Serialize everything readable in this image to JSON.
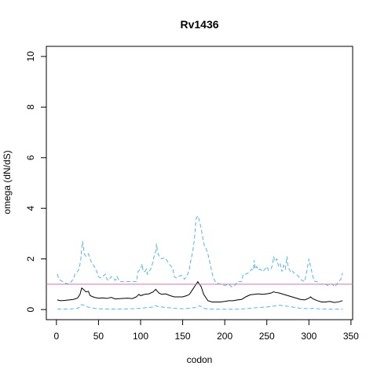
{
  "chart_data": {
    "type": "line",
    "title": "Rv1436",
    "xlabel": "codon",
    "ylabel": "omega (dN/dS)",
    "xlim": [
      -12,
      352
    ],
    "ylim": [
      -0.4,
      10.4
    ],
    "x_ticks": [
      0,
      50,
      100,
      150,
      200,
      250,
      300,
      350
    ],
    "y_ticks": [
      0,
      2,
      4,
      6,
      8,
      10
    ],
    "grid": false,
    "reference_line": {
      "y": 1,
      "color": "#cc79a7"
    },
    "series": [
      {
        "role": "estimate",
        "color": "#000000",
        "dash": "solid",
        "x": [
          1,
          5,
          10,
          15,
          20,
          25,
          28,
          30,
          32,
          35,
          38,
          40,
          45,
          50,
          55,
          60,
          65,
          70,
          75,
          80,
          85,
          90,
          95,
          98,
          100,
          105,
          110,
          115,
          118,
          120,
          122,
          125,
          130,
          135,
          140,
          145,
          150,
          155,
          158,
          160,
          162,
          165,
          168,
          170,
          172,
          175,
          178,
          180,
          185,
          190,
          195,
          200,
          205,
          210,
          215,
          220,
          225,
          230,
          235,
          240,
          245,
          250,
          255,
          258,
          260,
          265,
          270,
          275,
          280,
          285,
          290,
          295,
          300,
          302,
          305,
          310,
          315,
          320,
          325,
          330,
          335,
          340
        ],
        "y": [
          0.38,
          0.35,
          0.36,
          0.38,
          0.4,
          0.45,
          0.6,
          0.85,
          0.8,
          0.7,
          0.72,
          0.55,
          0.48,
          0.45,
          0.46,
          0.44,
          0.48,
          0.42,
          0.43,
          0.44,
          0.45,
          0.43,
          0.5,
          0.6,
          0.55,
          0.6,
          0.62,
          0.7,
          0.8,
          0.72,
          0.65,
          0.6,
          0.62,
          0.55,
          0.5,
          0.5,
          0.5,
          0.55,
          0.6,
          0.7,
          0.8,
          0.95,
          1.1,
          1.0,
          0.9,
          0.6,
          0.45,
          0.35,
          0.3,
          0.3,
          0.3,
          0.32,
          0.35,
          0.35,
          0.38,
          0.4,
          0.5,
          0.58,
          0.6,
          0.62,
          0.6,
          0.62,
          0.65,
          0.7,
          0.68,
          0.65,
          0.6,
          0.55,
          0.5,
          0.45,
          0.4,
          0.38,
          0.45,
          0.5,
          0.42,
          0.35,
          0.3,
          0.3,
          0.32,
          0.28,
          0.3,
          0.35
        ]
      },
      {
        "role": "upper bound",
        "color": "#56b4e9",
        "dash": "dashed",
        "x": [
          1,
          3,
          5,
          8,
          10,
          15,
          20,
          22,
          25,
          27,
          29,
          30,
          31,
          32,
          33,
          35,
          38,
          40,
          42,
          45,
          48,
          50,
          52,
          55,
          58,
          60,
          62,
          65,
          68,
          70,
          72,
          75,
          80,
          85,
          90,
          95,
          97,
          100,
          102,
          103,
          105,
          107,
          108,
          110,
          112,
          114,
          116,
          118,
          119,
          120,
          122,
          125,
          128,
          130,
          132,
          135,
          138,
          140,
          142,
          145,
          148,
          150,
          152,
          155,
          158,
          160,
          162,
          164,
          166,
          168,
          170,
          172,
          174,
          176,
          178,
          180,
          182,
          184,
          186,
          188,
          190,
          195,
          200,
          205,
          208,
          210,
          212,
          215,
          218,
          220,
          222,
          225,
          228,
          230,
          232,
          234,
          235,
          236,
          238,
          240,
          242,
          245,
          248,
          250,
          252,
          255,
          257,
          258,
          260,
          262,
          264,
          266,
          268,
          270,
          272,
          274,
          275,
          278,
          280,
          282,
          285,
          288,
          290,
          292,
          295,
          298,
          300,
          302,
          304,
          306,
          308,
          310,
          312,
          315,
          318,
          320,
          322,
          325,
          328,
          330,
          332,
          335,
          338,
          340
        ],
        "y": [
          1.4,
          1.2,
          1.15,
          1.1,
          1.05,
          1.0,
          1.2,
          1.4,
          1.5,
          1.6,
          2.0,
          2.4,
          2.7,
          2.5,
          2.2,
          2.1,
          2.2,
          2.0,
          1.85,
          1.7,
          1.5,
          1.3,
          1.25,
          1.3,
          1.4,
          1.2,
          1.15,
          1.3,
          1.25,
          1.15,
          1.3,
          1.1,
          1.1,
          1.1,
          1.1,
          1.1,
          1.5,
          1.6,
          1.8,
          1.5,
          1.5,
          1.6,
          1.4,
          1.5,
          1.6,
          1.8,
          2.1,
          2.3,
          2.6,
          2.3,
          2.1,
          2.0,
          2.05,
          2.0,
          1.9,
          1.75,
          1.65,
          1.3,
          1.25,
          1.3,
          1.35,
          1.3,
          1.2,
          1.3,
          1.6,
          2.0,
          2.3,
          2.8,
          3.6,
          3.7,
          3.5,
          3.2,
          2.8,
          2.5,
          2.4,
          2.2,
          1.9,
          1.6,
          1.3,
          1.15,
          1.05,
          1.0,
          0.95,
          1.0,
          0.9,
          0.9,
          0.95,
          1.1,
          1.1,
          1.1,
          1.4,
          1.4,
          1.45,
          1.5,
          1.6,
          1.55,
          1.95,
          1.6,
          1.7,
          1.55,
          1.6,
          1.5,
          1.6,
          1.7,
          1.55,
          1.6,
          1.8,
          2.1,
          1.9,
          2.0,
          1.7,
          1.8,
          1.5,
          1.75,
          1.6,
          2.1,
          1.7,
          1.5,
          1.55,
          1.45,
          1.4,
          1.3,
          1.2,
          1.15,
          1.1,
          1.6,
          2.0,
          1.7,
          1.4,
          1.15,
          1.1,
          1.1,
          1.0,
          1.0,
          1.0,
          1.0,
          0.95,
          1.0,
          1.0,
          0.9,
          0.95,
          1.1,
          1.2,
          1.45
        ]
      },
      {
        "role": "lower bound",
        "color": "#56b4e9",
        "dash": "dashed",
        "x": [
          1,
          5,
          10,
          15,
          20,
          25,
          28,
          30,
          32,
          35,
          40,
          45,
          50,
          60,
          70,
          80,
          90,
          95,
          100,
          105,
          110,
          115,
          118,
          120,
          125,
          130,
          140,
          150,
          155,
          160,
          165,
          168,
          170,
          173,
          175,
          180,
          190,
          200,
          210,
          220,
          230,
          240,
          250,
          260,
          265,
          270,
          280,
          290,
          300,
          305,
          310,
          320,
          330,
          340
        ],
        "y": [
          0.02,
          0.02,
          0.02,
          0.02,
          0.03,
          0.05,
          0.1,
          0.2,
          0.18,
          0.12,
          0.08,
          0.05,
          0.03,
          0.02,
          0.02,
          0.02,
          0.03,
          0.04,
          0.05,
          0.07,
          0.08,
          0.1,
          0.16,
          0.12,
          0.1,
          0.08,
          0.05,
          0.03,
          0.04,
          0.06,
          0.08,
          0.12,
          0.15,
          0.1,
          0.05,
          0.02,
          0.01,
          0.01,
          0.01,
          0.02,
          0.05,
          0.08,
          0.1,
          0.15,
          0.17,
          0.15,
          0.1,
          0.05,
          0.03,
          0.05,
          0.03,
          0.02,
          0.01,
          0.02
        ]
      }
    ]
  }
}
